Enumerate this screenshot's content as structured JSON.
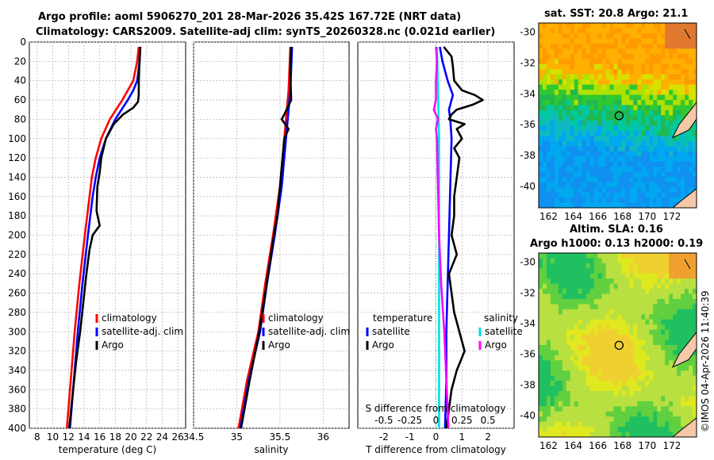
{
  "header": {
    "title_line1": "Argo profile: aoml 5906270_201 28-Mar-2026 35.42S 167.72E (NRT data)",
    "title_line2": "Climatology: CARS2009. Satellite-adj clim: synTS_20260328.nc (0.021d earlier)"
  },
  "maps": {
    "sst_title": "sat. SST: 20.8 Argo: 21.1",
    "sla_title_line1": "Altim. SLA: 0.16",
    "sla_title_line2": "Argo h1000: 0.13 h2000: 0.19",
    "lon_ticks": [
      162,
      164,
      166,
      168,
      170,
      172
    ],
    "lat_ticks": [
      -30,
      -32,
      -34,
      -36,
      -38,
      -40
    ],
    "argo_position": {
      "lon": 167.72,
      "lat": -35.42
    },
    "watermark": "©IMOS 04-Apr-2026 11:40:39"
  },
  "chart_data": [
    {
      "type": "line",
      "title": "",
      "xlabel": "temperature (deg C)",
      "ylabel": "",
      "xlim": [
        7,
        27
      ],
      "ylim": [
        400,
        0
      ],
      "xticks": [
        8,
        10,
        12,
        14,
        16,
        18,
        20,
        22,
        24,
        26
      ],
      "yticks": [
        0,
        20,
        40,
        60,
        80,
        100,
        120,
        140,
        160,
        180,
        200,
        220,
        240,
        260,
        280,
        300,
        320,
        340,
        360,
        380,
        400
      ],
      "legend": [
        "climatology",
        "satellite-adj. clim",
        "Argo"
      ],
      "series": [
        {
          "name": "climatology",
          "color": "#ff0000",
          "depth": [
            5,
            20,
            40,
            50,
            60,
            70,
            80,
            100,
            120,
            140,
            160,
            200,
            250,
            300,
            350,
            400
          ],
          "values": [
            21.0,
            20.8,
            20.3,
            19.6,
            18.9,
            18.1,
            17.3,
            16.2,
            15.5,
            15.0,
            14.7,
            14.1,
            13.4,
            12.8,
            12.3,
            11.8
          ]
        },
        {
          "name": "satellite-adj. clim",
          "color": "#0000ff",
          "depth": [
            5,
            20,
            40,
            50,
            60,
            70,
            80,
            100,
            120,
            140,
            160,
            200,
            250,
            300,
            350,
            400
          ],
          "values": [
            21.2,
            21.1,
            20.8,
            20.3,
            19.6,
            18.8,
            18.0,
            16.8,
            16.0,
            15.5,
            15.1,
            14.5,
            13.8,
            13.2,
            12.7,
            12.2
          ]
        },
        {
          "name": "Argo",
          "color": "#000000",
          "depth": [
            5,
            20,
            40,
            55,
            62,
            68,
            75,
            85,
            100,
            120,
            135,
            150,
            175,
            190,
            200,
            215,
            240,
            270,
            300,
            330,
            360,
            400
          ],
          "values": [
            21.2,
            21.1,
            21.0,
            21.0,
            20.9,
            20.3,
            19.0,
            17.8,
            16.8,
            16.2,
            16.0,
            15.7,
            15.6,
            16.0,
            15.1,
            14.7,
            14.3,
            13.9,
            13.5,
            13.0,
            12.6,
            12.1
          ]
        }
      ]
    },
    {
      "type": "line",
      "title": "",
      "xlabel": "salinity",
      "ylabel": "",
      "xlim": [
        34.5,
        36.3
      ],
      "ylim": [
        400,
        0
      ],
      "xticks": [
        34.5,
        35,
        35.5,
        36
      ],
      "legend": [
        "climatology",
        "satellite-adj. clim",
        "Argo"
      ],
      "series": [
        {
          "name": "climatology",
          "color": "#ff0000",
          "depth": [
            5,
            50,
            100,
            150,
            200,
            250,
            300,
            350,
            400
          ],
          "values": [
            35.62,
            35.6,
            35.55,
            35.5,
            35.42,
            35.33,
            35.25,
            35.12,
            35.02
          ]
        },
        {
          "name": "satellite-adj. clim",
          "color": "#0000ff",
          "depth": [
            5,
            50,
            100,
            150,
            200,
            250,
            300,
            350,
            400
          ],
          "values": [
            35.64,
            35.62,
            35.57,
            35.52,
            35.44,
            35.35,
            35.27,
            35.14,
            35.04
          ]
        },
        {
          "name": "Argo",
          "color": "#000000",
          "depth": [
            5,
            30,
            60,
            75,
            80,
            90,
            100,
            120,
            150,
            180,
            200,
            230,
            260,
            300,
            350,
            400
          ],
          "values": [
            35.63,
            35.62,
            35.63,
            35.55,
            35.52,
            35.6,
            35.55,
            35.53,
            35.5,
            35.47,
            35.43,
            35.38,
            35.33,
            35.26,
            35.15,
            35.05
          ]
        }
      ]
    },
    {
      "type": "line",
      "title": "",
      "xlabel": "T difference from climatology",
      "xlabel_top": "S difference from climatology",
      "ylabel": "",
      "xlim": [
        -3,
        3
      ],
      "ylim": [
        400,
        0
      ],
      "xticks": [
        -2,
        -1,
        0,
        1,
        2
      ],
      "xticks_top": [
        "-0.5",
        "-0.25",
        "0",
        "0.25",
        "0.5"
      ],
      "legend_temperature": {
        "heading": "temperature",
        "items": [
          "satellite",
          "Argo"
        ]
      },
      "legend_salinity": {
        "heading": "salinity",
        "items": [
          "satellite",
          "Argo"
        ]
      },
      "series": [
        {
          "name": "temperature satellite",
          "color": "#0000ff",
          "depth": [
            5,
            20,
            40,
            55,
            60,
            70,
            80,
            100,
            150,
            200,
            250,
            300,
            350,
            400
          ],
          "values": [
            0.15,
            0.25,
            0.45,
            0.65,
            0.6,
            0.5,
            0.55,
            0.6,
            0.55,
            0.5,
            0.45,
            0.4,
            0.4,
            0.35
          ]
        },
        {
          "name": "temperature Argo",
          "color": "#000000",
          "depth": [
            5,
            15,
            25,
            40,
            50,
            55,
            60,
            65,
            70,
            75,
            80,
            85,
            90,
            100,
            110,
            120,
            140,
            160,
            180,
            200,
            220,
            240,
            260,
            280,
            300,
            320,
            340,
            360,
            380,
            400
          ],
          "values": [
            0.3,
            0.6,
            0.65,
            0.7,
            1.0,
            1.5,
            1.8,
            1.4,
            0.8,
            0.6,
            0.5,
            1.1,
            0.8,
            1.0,
            0.7,
            0.9,
            0.8,
            0.7,
            0.7,
            0.6,
            0.8,
            0.5,
            0.6,
            0.7,
            0.9,
            1.1,
            0.8,
            0.6,
            0.5,
            0.4
          ]
        },
        {
          "name": "salinity satellite",
          "color": "#00e0e0",
          "depth": [
            5,
            50,
            100,
            200,
            300,
            400
          ],
          "values": [
            0.01,
            0.02,
            0.03,
            0.03,
            0.03,
            0.03
          ]
        },
        {
          "name": "salinity Argo",
          "color": "#ff00ff",
          "depth": [
            5,
            20,
            40,
            60,
            70,
            80,
            90,
            100,
            150,
            200,
            250,
            300,
            350,
            400
          ],
          "values": [
            0.0,
            0.01,
            0.0,
            0.0,
            -0.02,
            0.02,
            0.0,
            0.01,
            0.02,
            0.03,
            0.05,
            0.08,
            0.1,
            0.12
          ]
        }
      ]
    }
  ]
}
